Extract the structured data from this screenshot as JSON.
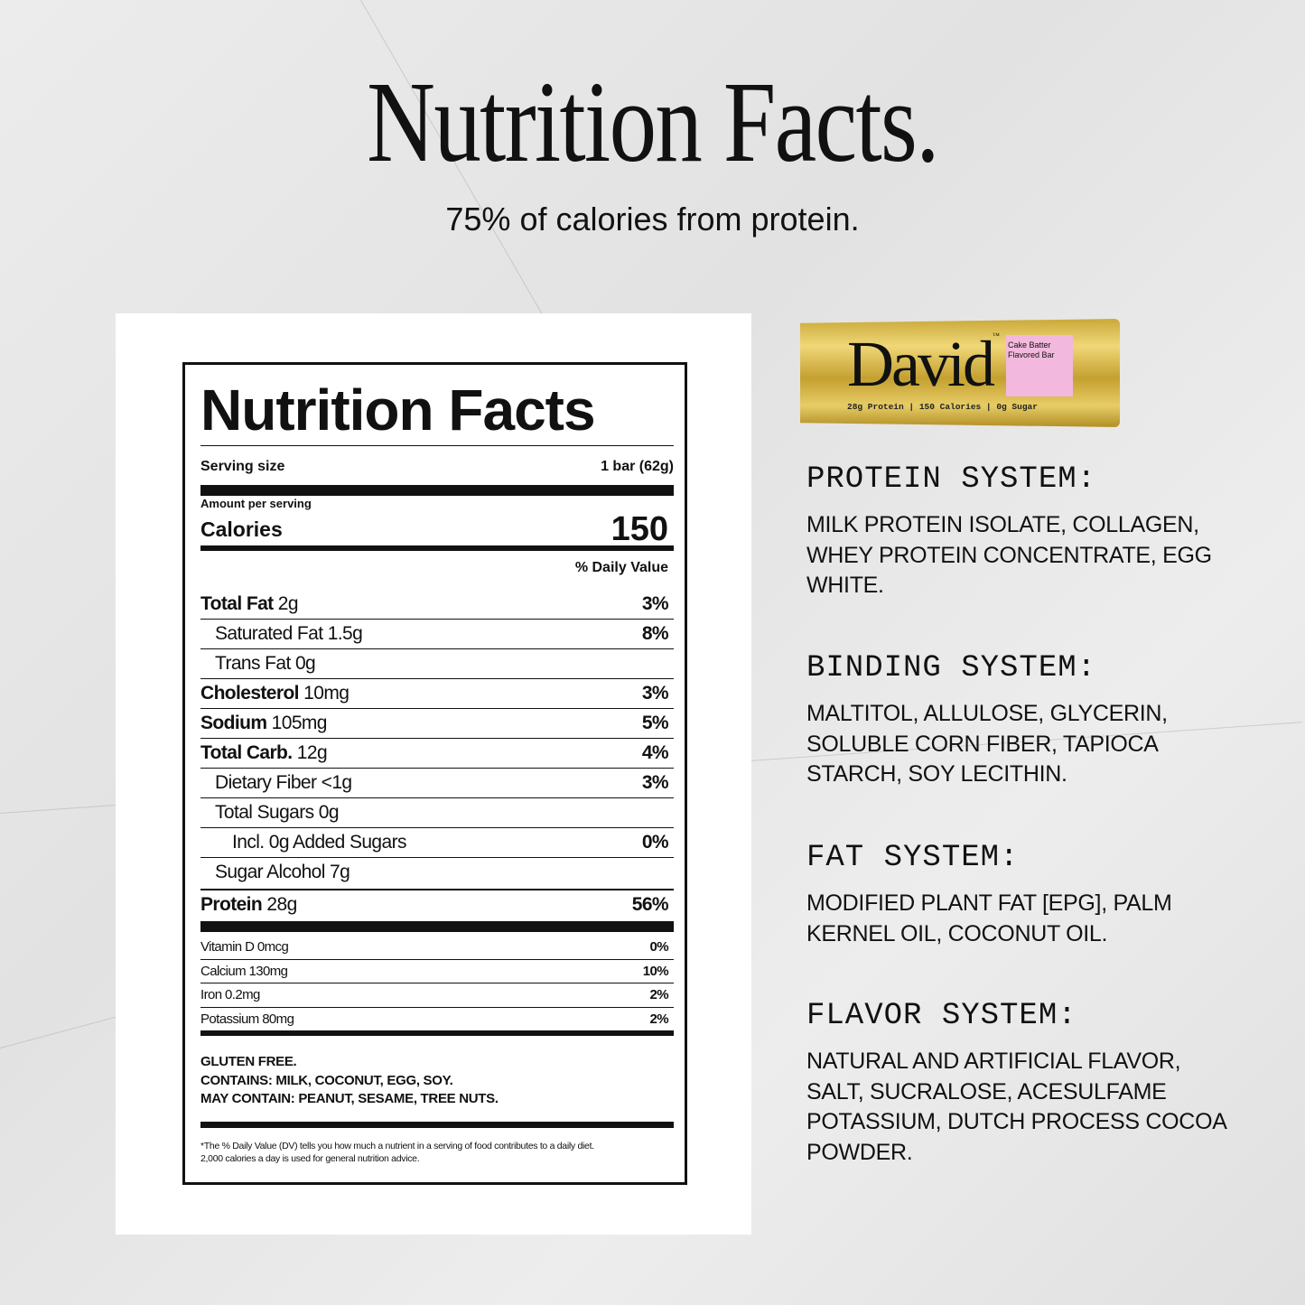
{
  "header": {
    "title": "Nutrition Facts.",
    "subtitle": "75% of calories from protein."
  },
  "label": {
    "title": "Nutrition Facts",
    "serving_label": "Serving size",
    "serving_value": "1 bar (62g)",
    "amount_label": "Amount per serving",
    "calories_label": "Calories",
    "calories_value": "150",
    "dv_header": "% Daily Value",
    "nutrients": [
      {
        "name": "Total Fat",
        "amount": "2g",
        "dv": "3%"
      },
      {
        "name": "Saturated Fat",
        "amount": "1.5g",
        "dv": "8%"
      },
      {
        "name": "Trans Fat",
        "amount": "0g",
        "dv": ""
      },
      {
        "name": "Cholesterol",
        "amount": "10mg",
        "dv": "3%"
      },
      {
        "name": "Sodium",
        "amount": "105mg",
        "dv": "5%"
      },
      {
        "name": "Total Carb.",
        "amount": "12g",
        "dv": "4%"
      },
      {
        "name": "Dietary Fiber",
        "amount": "<1g",
        "dv": "3%"
      },
      {
        "name": "Total Sugars",
        "amount": "0g",
        "dv": ""
      },
      {
        "name": "Incl. 0g Added Sugars",
        "amount": "",
        "dv": "0%"
      },
      {
        "name": "Sugar Alcohol",
        "amount": "7g",
        "dv": ""
      },
      {
        "name": "Protein",
        "amount": "28g",
        "dv": "56%"
      }
    ],
    "vitamins": [
      {
        "name": "Vitamin D 0mcg",
        "dv": "0%"
      },
      {
        "name": "Calcium 130mg",
        "dv": "10%"
      },
      {
        "name": "Iron 0.2mg",
        "dv": "2%"
      },
      {
        "name": "Potassium 80mg",
        "dv": "2%"
      }
    ],
    "allergens": [
      "GLUTEN FREE.",
      "CONTAINS: MILK, COCONUT, EGG, SOY.",
      "MAY CONTAIN: PEANUT, SESAME, TREE NUTS."
    ],
    "footnote": [
      "*The % Daily Value (DV) tells you how much a nutrient in a serving of food contributes to a daily diet.",
      "2,000 calories a day is used for general nutrition advice."
    ]
  },
  "product": {
    "brand": "David",
    "trademark": "™",
    "flavor_line1": "Cake Batter",
    "flavor_line2": "Flavored Bar",
    "tagline": "28g Protein | 150 Calories | 0g Sugar",
    "wrapper_color": "#d4b247",
    "flavor_color": "#f2b8dd"
  },
  "systems": [
    {
      "title": "PROTEIN SYSTEM:",
      "text": "MILK PROTEIN ISOLATE, COLLAGEN, WHEY PROTEIN CONCENTRATE, EGG WHITE."
    },
    {
      "title": "BINDING SYSTEM:",
      "text": "MALTITOL, ALLULOSE, GLYCERIN, SOLUBLE CORN FIBER, TAPIOCA STARCH, SOY LECITHIN."
    },
    {
      "title": "FAT SYSTEM:",
      "text": "MODIFIED PLANT FAT [EPG], PALM KERNEL OIL, COCONUT OIL."
    },
    {
      "title": "FLAVOR SYSTEM:",
      "text": "NATURAL AND ARTIFICIAL FLAVOR, SALT, SUCRALOSE, ACESULFAME POTASSIUM, DUTCH PROCESS COCOA POWDER."
    }
  ]
}
